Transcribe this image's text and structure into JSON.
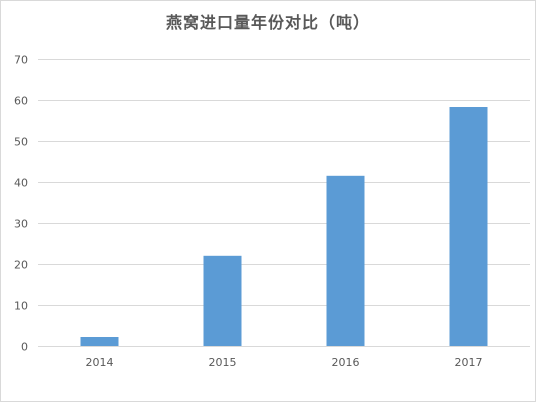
{
  "chart_data": {
    "type": "bar",
    "title": "燕窝进口量年份对比（吨）",
    "categories": [
      "2014",
      "2015",
      "2016",
      "2017"
    ],
    "series": [
      {
        "values": [
          2.2,
          22,
          41.5,
          58.3
        ]
      }
    ],
    "ylim": [
      0,
      70
    ],
    "yticks": [
      0,
      10,
      20,
      30,
      40,
      50,
      60,
      70
    ],
    "grid": true,
    "legend": "none",
    "colors": {
      "bar": "#5b9bd5",
      "grid": "#d9d9d9",
      "axis": "#d9d9d9",
      "text": "#595959"
    }
  }
}
